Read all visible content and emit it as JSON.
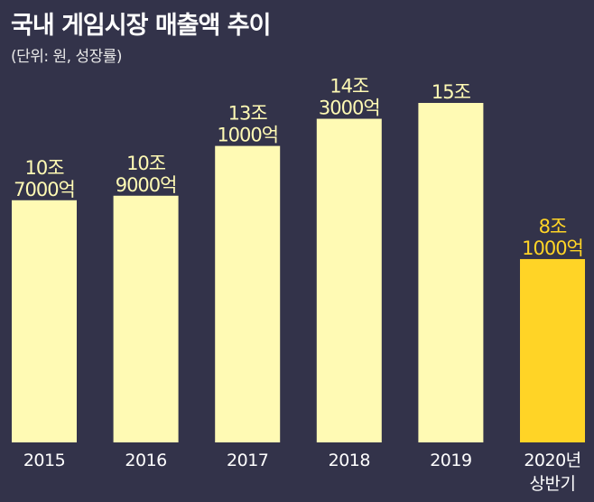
{
  "title": "국내 게임시장 매출액 추이",
  "subtitle": "(단위: 원, 성장률)",
  "colors": {
    "background": "#33334a",
    "bar": "#fffab4",
    "bar_highlight": "#ffd426",
    "label": "#fffab4",
    "label_highlight": "#ffd426",
    "axis_text": "#ffffff"
  },
  "chart_data": {
    "type": "bar",
    "title": "국내 게임시장 매출액 추이",
    "subtitle": "(단위: 원, 성장률)",
    "categories": [
      [
        "2015"
      ],
      [
        "2016"
      ],
      [
        "2017"
      ],
      [
        "2018"
      ],
      [
        "2019"
      ],
      [
        "2020년",
        "상반기"
      ]
    ],
    "values": [
      10.7,
      10.9,
      13.1,
      14.3,
      15.0,
      8.1
    ],
    "value_labels": [
      [
        "10조",
        "7000억"
      ],
      [
        "10조",
        "9000억"
      ],
      [
        "13조",
        "1000억"
      ],
      [
        "14조",
        "3000억"
      ],
      [
        "15조"
      ],
      [
        "8조",
        "1000억"
      ]
    ],
    "highlight_index": 5,
    "ylim": [
      0,
      15
    ],
    "grid": false,
    "legend": "none"
  }
}
